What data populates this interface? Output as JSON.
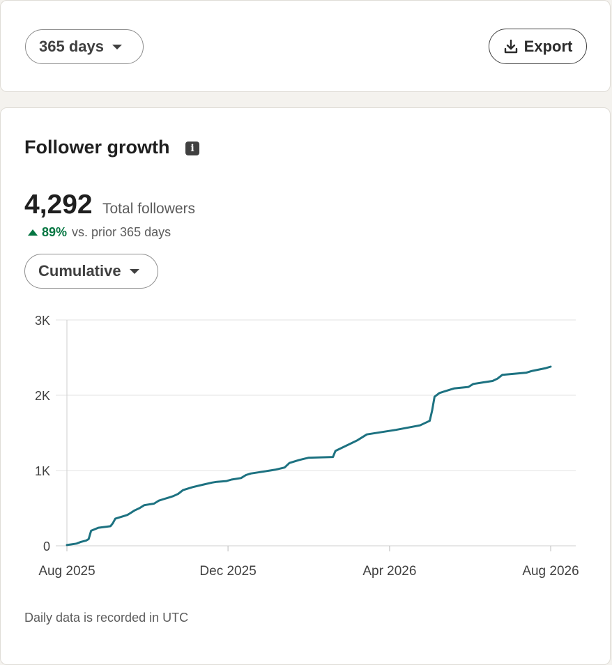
{
  "controls": {
    "range_label": "365 days",
    "export_label": "Export"
  },
  "section": {
    "title": "Follower growth",
    "total_value": "4,292",
    "total_label": "Total followers",
    "change_pct": "89%",
    "change_text": "vs. prior 365 days",
    "mode_label": "Cumulative",
    "footnote": "Daily data is recorded in UTC"
  },
  "colors": {
    "line": "#1d7281",
    "positive": "#057642"
  },
  "icons": {
    "range_caret": "caret-down-icon",
    "export": "download-icon",
    "info": "info-icon",
    "change": "arrow-up-icon",
    "mode_caret": "caret-down-icon"
  },
  "chart_data": {
    "type": "line",
    "title": "",
    "xlabel": "",
    "ylabel": "",
    "ylim": [
      0,
      3000
    ],
    "yticks": [
      0,
      1000,
      2000,
      3000
    ],
    "ytick_labels": [
      "0",
      "1K",
      "2K",
      "3K"
    ],
    "xticks": [
      {
        "label": "Aug 2025",
        "value": 0
      },
      {
        "label": "Dec 2025",
        "value": 0.333
      },
      {
        "label": "Apr 2026",
        "value": 0.667
      },
      {
        "label": "Aug 2026",
        "value": 1
      }
    ],
    "grid": true,
    "series": [
      {
        "x": [
          0,
          0.02,
          0.028,
          0.04,
          0.045,
          0.05,
          0.065,
          0.09,
          0.095,
          0.1,
          0.12,
          0.125,
          0.13,
          0.14,
          0.15,
          0.16,
          0.18,
          0.185,
          0.19,
          0.2,
          0.21,
          0.22,
          0.23,
          0.24,
          0.25,
          0.26,
          0.28,
          0.3,
          0.31,
          0.33,
          0.34,
          0.36,
          0.37,
          0.38,
          0.4,
          0.42,
          0.43,
          0.45,
          0.46,
          0.48,
          0.5,
          0.55,
          0.555,
          0.6,
          0.62,
          0.68,
          0.73,
          0.75,
          0.755,
          0.76,
          0.77,
          0.8,
          0.83,
          0.84,
          0.86,
          0.88,
          0.89,
          0.9,
          0.95,
          0.96,
          0.99,
          1.0
        ],
        "values": [
          10,
          30,
          50,
          70,
          90,
          200,
          240,
          260,
          300,
          360,
          400,
          410,
          430,
          470,
          500,
          540,
          560,
          580,
          600,
          620,
          640,
          660,
          690,
          740,
          760,
          780,
          810,
          840,
          850,
          860,
          880,
          900,
          940,
          960,
          980,
          1000,
          1010,
          1040,
          1100,
          1140,
          1170,
          1180,
          1260,
          1400,
          1480,
          1540,
          1600,
          1660,
          1800,
          1980,
          2030,
          2090,
          2110,
          2150,
          2170,
          2190,
          2220,
          2270,
          2300,
          2320,
          2360,
          2380
        ]
      }
    ]
  }
}
